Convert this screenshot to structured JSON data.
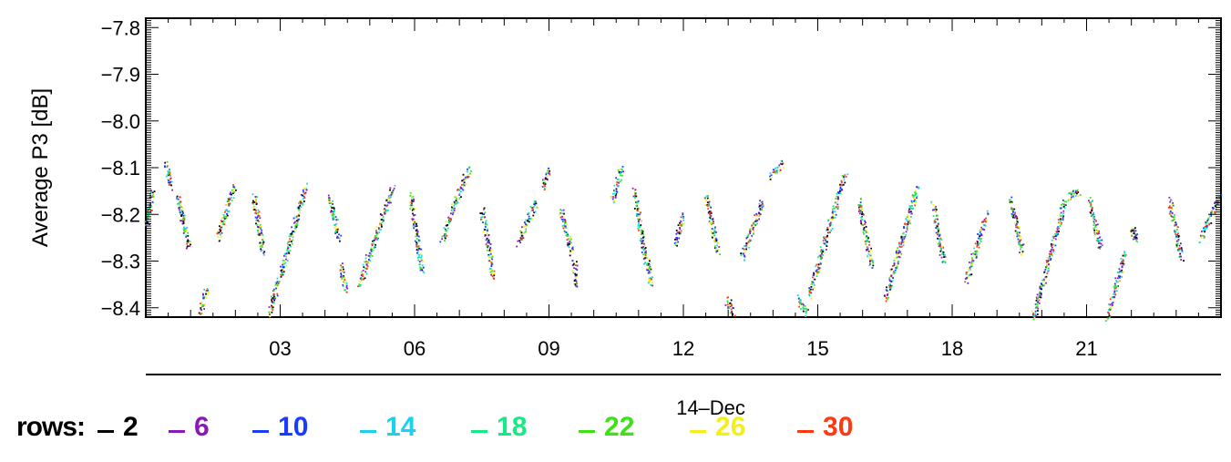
{
  "chart_data": {
    "type": "scatter",
    "title": "",
    "ylabel": "Average  P3  [dB]",
    "xlabel": "14–Dec",
    "ylim": [
      -8.42,
      -7.78
    ],
    "xlim": [
      0.0,
      24.0
    ],
    "yticks": [
      -7.8,
      -7.9,
      -8.0,
      -8.1,
      -8.2,
      -8.3,
      -8.4
    ],
    "ytick_labels": [
      "−7.8",
      "−7.9",
      "−8.0",
      "−8.1",
      "−8.2",
      "−8.3",
      "−8.4"
    ],
    "xticks": [
      3,
      6,
      9,
      12,
      15,
      18,
      21
    ],
    "xtick_labels": [
      "03",
      "06",
      "09",
      "12",
      "15",
      "18",
      "21"
    ],
    "grid": false,
    "legend_title": "rows:",
    "series": [
      {
        "name": "2",
        "color": "#000000"
      },
      {
        "name": "6",
        "color": "#8a1ab8"
      },
      {
        "name": "10",
        "color": "#1a3cff"
      },
      {
        "name": "14",
        "color": "#1ad2f0"
      },
      {
        "name": "18",
        "color": "#16ea82"
      },
      {
        "name": "22",
        "color": "#3fe01a"
      },
      {
        "name": "26",
        "color": "#f5ee1a"
      },
      {
        "name": "30",
        "color": "#ff3a10"
      }
    ],
    "segments": [
      [
        0.0,
        -8.22,
        0.15,
        -8.15
      ],
      [
        0.45,
        -8.09,
        0.55,
        -8.14
      ],
      [
        0.7,
        -8.16,
        0.95,
        -8.27
      ],
      [
        1.2,
        -8.41,
        1.35,
        -8.36
      ],
      [
        1.6,
        -8.25,
        1.95,
        -8.14
      ],
      [
        2.4,
        -8.16,
        2.6,
        -8.28
      ],
      [
        2.75,
        -8.41,
        2.95,
        -8.34
      ],
      [
        3.0,
        -8.33,
        3.55,
        -8.14
      ],
      [
        4.1,
        -8.16,
        4.3,
        -8.25
      ],
      [
        4.35,
        -8.31,
        4.45,
        -8.36
      ],
      [
        4.75,
        -8.35,
        5.5,
        -8.14
      ],
      [
        5.9,
        -8.16,
        6.15,
        -8.32
      ],
      [
        6.6,
        -8.25,
        7.2,
        -8.1
      ],
      [
        7.5,
        -8.19,
        7.75,
        -8.33
      ],
      [
        8.3,
        -8.26,
        8.7,
        -8.17
      ],
      [
        8.85,
        -8.14,
        9.0,
        -8.1
      ],
      [
        9.25,
        -8.19,
        9.5,
        -8.28
      ],
      [
        9.55,
        -8.3,
        9.6,
        -8.35
      ],
      [
        10.4,
        -8.17,
        10.6,
        -8.1
      ],
      [
        10.9,
        -8.15,
        11.15,
        -8.3
      ],
      [
        11.2,
        -8.3,
        11.25,
        -8.35
      ],
      [
        11.8,
        -8.26,
        12.0,
        -8.2
      ],
      [
        12.5,
        -8.16,
        12.75,
        -8.28
      ],
      [
        12.95,
        -8.38,
        13.1,
        -8.41
      ],
      [
        13.3,
        -8.29,
        13.75,
        -8.17
      ],
      [
        13.95,
        -8.12,
        14.2,
        -8.09
      ],
      [
        14.55,
        -8.38,
        14.75,
        -8.41
      ],
      [
        14.8,
        -8.37,
        15.6,
        -8.11
      ],
      [
        15.9,
        -8.17,
        16.2,
        -8.31
      ],
      [
        16.5,
        -8.38,
        17.2,
        -8.14
      ],
      [
        17.55,
        -8.18,
        17.8,
        -8.3
      ],
      [
        18.3,
        -8.34,
        18.75,
        -8.2
      ],
      [
        19.3,
        -8.17,
        19.55,
        -8.28
      ],
      [
        19.8,
        -8.42,
        20.5,
        -8.17
      ],
      [
        20.6,
        -8.16,
        20.8,
        -8.15
      ],
      [
        21.05,
        -8.17,
        21.3,
        -8.27
      ],
      [
        21.45,
        -8.42,
        21.85,
        -8.28
      ],
      [
        22.0,
        -8.23,
        22.1,
        -8.25
      ],
      [
        22.85,
        -8.17,
        23.1,
        -8.29
      ],
      [
        23.55,
        -8.25,
        23.95,
        -8.16
      ]
    ]
  }
}
